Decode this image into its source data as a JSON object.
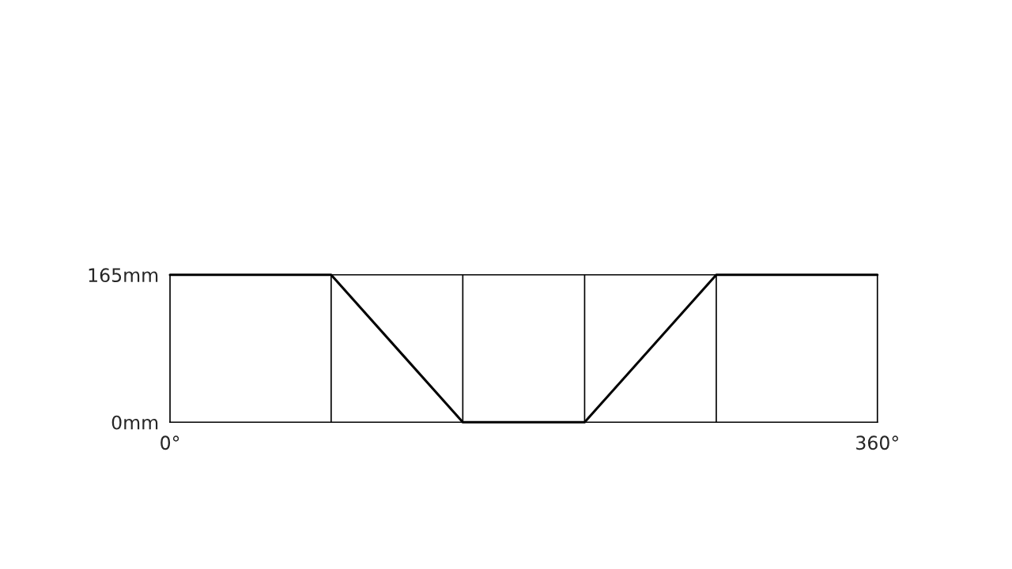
{
  "chart_data": {
    "type": "line",
    "x": [
      0,
      82,
      149,
      211,
      278,
      360
    ],
    "series": [
      {
        "color": "#000000",
        "values": [
          165,
          165,
          0,
          0,
          165,
          165
        ]
      }
    ],
    "xlim": [
      0,
      360
    ],
    "ylim": [
      0,
      165
    ],
    "xticks": [
      {
        "value": 0,
        "label": "0°"
      },
      {
        "value": 360,
        "label": "360°"
      }
    ],
    "yticks": [
      {
        "value": 0,
        "label": "0mm"
      },
      {
        "value": 165,
        "label": "165mm"
      }
    ],
    "ref_lines": [
      {
        "axis": "x",
        "value": 82,
        "color": "#000000"
      },
      {
        "axis": "x",
        "value": 149,
        "color": "#000000"
      },
      {
        "axis": "x",
        "value": 211,
        "color": "#000000"
      },
      {
        "axis": "x",
        "value": 278,
        "color": "#000000"
      }
    ],
    "grid": false,
    "marker": "none",
    "line_style": "solid"
  }
}
